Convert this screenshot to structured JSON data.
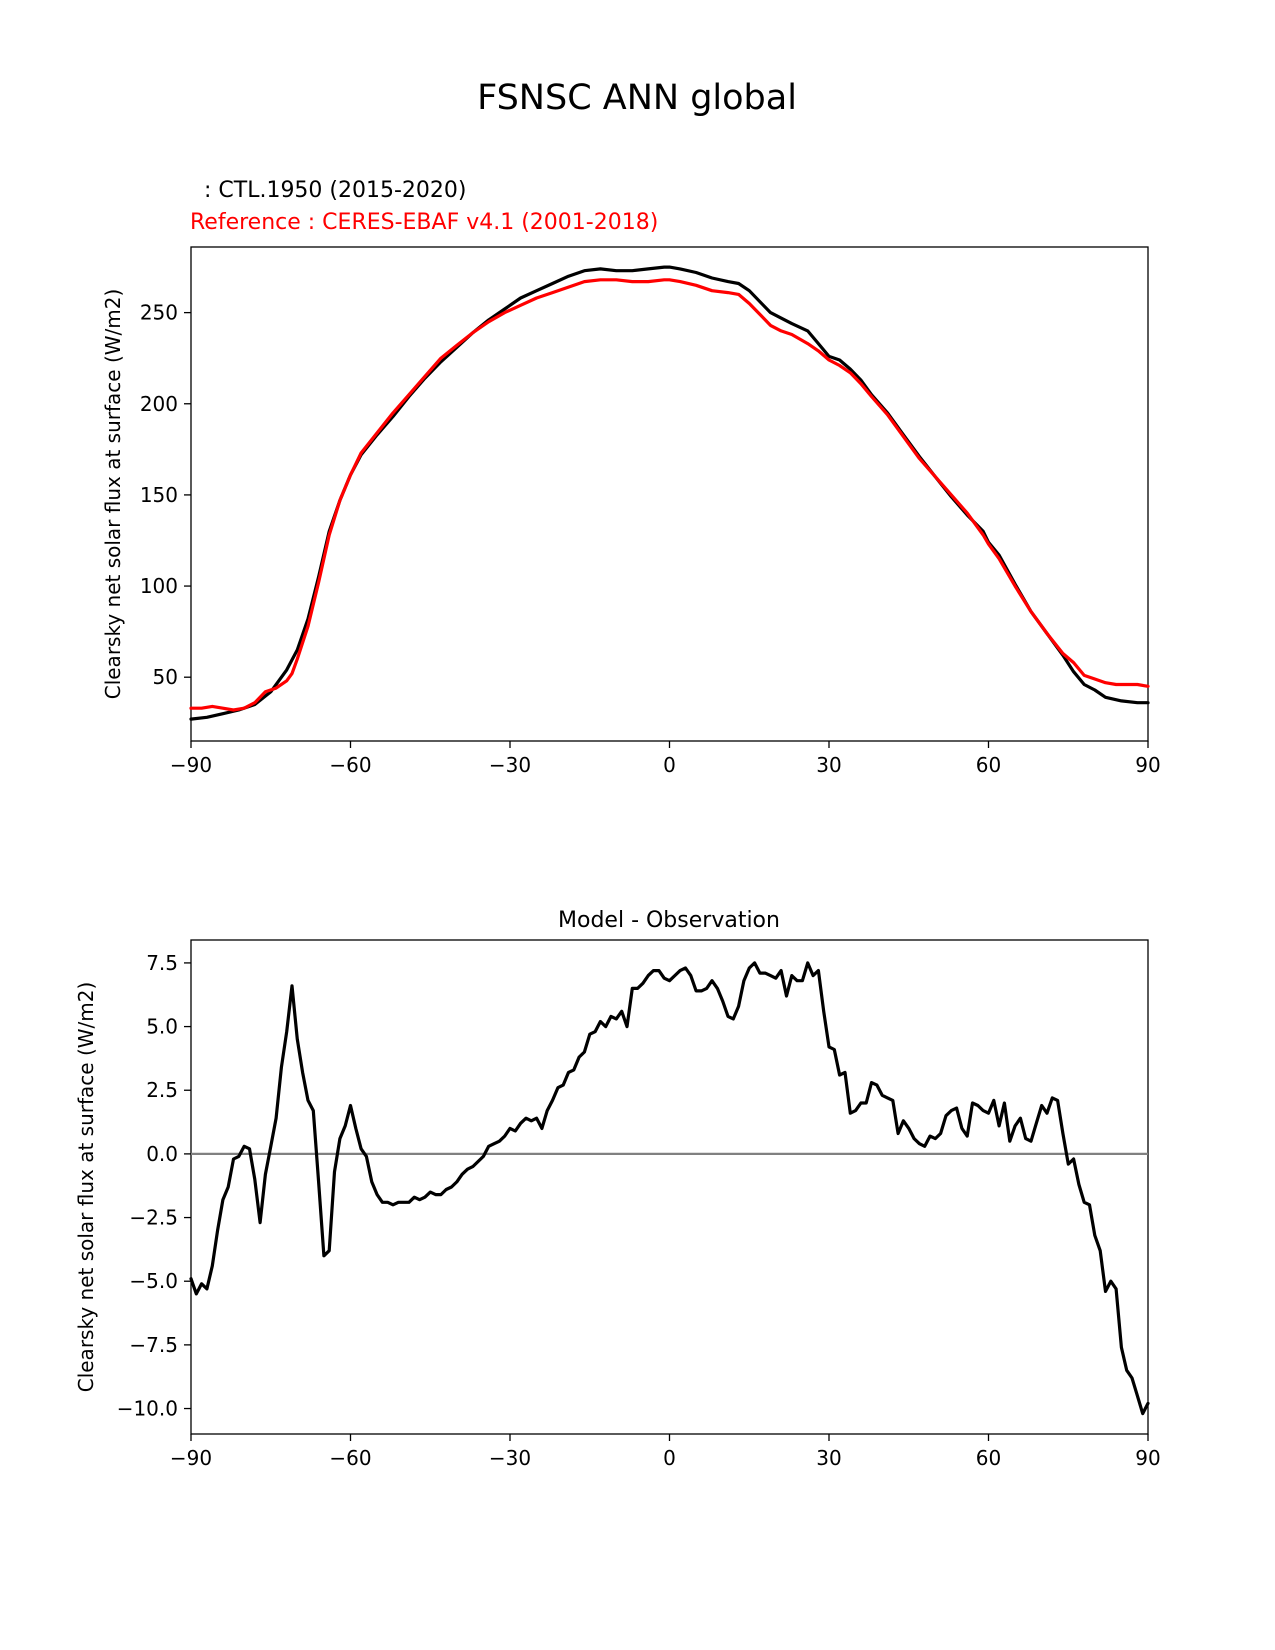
{
  "figure": {
    "title": "FSNSC ANN global",
    "subtitle_test": "  : CTL.1950 (2015-2020)",
    "subtitle_ref": "Reference : CERES-EBAF v4.1 (2001-2018)",
    "colors": {
      "test": "#000000",
      "reference": "#ff0000",
      "diff": "#000000",
      "zero_line": "#808080",
      "ref_title": "#ff0000"
    }
  },
  "chart_data": [
    {
      "type": "line",
      "title": "",
      "xlabel": "",
      "ylabel": "Clearsky net solar flux at surface (W/m2)",
      "xlim": [
        -90,
        90
      ],
      "ylim": [
        15,
        286
      ],
      "xticks": [
        -90,
        -60,
        -30,
        0,
        30,
        60,
        90
      ],
      "xtick_labels": [
        "−90",
        "−60",
        "−30",
        "0",
        "30",
        "60",
        "90"
      ],
      "yticks": [
        50,
        100,
        150,
        200,
        250
      ],
      "ytick_labels": [
        "50",
        "100",
        "150",
        "200",
        "250"
      ],
      "series": [
        {
          "name": "CTL.1950 (2015-2020)",
          "x": [
            -90,
            -87,
            -84,
            -81,
            -78,
            -75,
            -72,
            -70,
            -68,
            -66,
            -64,
            -62,
            -60,
            -58,
            -55,
            -52,
            -49,
            -46,
            -43,
            -40,
            -37,
            -34,
            -31,
            -28,
            -25,
            -22,
            -19,
            -16,
            -13,
            -10,
            -7,
            -4,
            -1,
            0,
            2,
            5,
            8,
            11,
            13,
            15,
            17,
            19,
            21,
            23,
            26,
            28,
            30,
            32,
            34,
            36,
            38,
            41,
            44,
            47,
            50,
            53,
            56,
            59,
            60,
            62,
            65,
            68,
            71,
            74,
            76,
            78,
            80,
            82,
            85,
            88,
            90
          ],
          "values": [
            27,
            28,
            30,
            32,
            35,
            42,
            54,
            65,
            82,
            105,
            130,
            147,
            161,
            172,
            183,
            193,
            204,
            214,
            223,
            231,
            239,
            246,
            252,
            258,
            262,
            266,
            270,
            273,
            274,
            273,
            273,
            274,
            275,
            275,
            274,
            272,
            269,
            267,
            266,
            262,
            256,
            250,
            247,
            244,
            240,
            233,
            226,
            224,
            219,
            213,
            205,
            195,
            183,
            171,
            160,
            149,
            139,
            130,
            124,
            117,
            101,
            86,
            74,
            62,
            53,
            46,
            43,
            39,
            37,
            36,
            36
          ]
        },
        {
          "name": "Reference : CERES-EBAF v4.1 (2001-2018)",
          "x": [
            -90,
            -88,
            -86,
            -84,
            -82,
            -80,
            -78,
            -76,
            -74,
            -72,
            -71,
            -70,
            -68,
            -66,
            -64,
            -62,
            -60,
            -58,
            -55,
            -52,
            -49,
            -46,
            -43,
            -40,
            -37,
            -34,
            -31,
            -28,
            -25,
            -22,
            -19,
            -16,
            -13,
            -10,
            -7,
            -4,
            -1,
            0,
            2,
            5,
            8,
            11,
            13,
            15,
            17,
            19,
            21,
            23,
            26,
            28,
            30,
            32,
            34,
            36,
            38,
            41,
            44,
            47,
            50,
            53,
            56,
            59,
            60,
            62,
            65,
            68,
            71,
            74,
            76,
            78,
            80,
            82,
            84,
            86,
            88,
            90
          ],
          "values": [
            33,
            33,
            34,
            33,
            32,
            33,
            36,
            42,
            44,
            48,
            52,
            60,
            78,
            102,
            128,
            147,
            161,
            173,
            184,
            195,
            205,
            215,
            225,
            232,
            239,
            245,
            250,
            254,
            258,
            261,
            264,
            267,
            268,
            268,
            267,
            267,
            268,
            268,
            267,
            265,
            262,
            261,
            260,
            255,
            249,
            243,
            240,
            238,
            233,
            229,
            224,
            221,
            217,
            211,
            204,
            194,
            182,
            170,
            160,
            150,
            140,
            128,
            123,
            115,
            100,
            86,
            74,
            63,
            58,
            51,
            49,
            47,
            46,
            46,
            46,
            45
          ]
        }
      ]
    },
    {
      "type": "line",
      "title": "Model - Observation",
      "xlabel": "",
      "ylabel": "Clearsky net solar flux at surface (W/m2)",
      "xlim": [
        -90,
        90
      ],
      "ylim": [
        -11,
        8.4
      ],
      "xticks": [
        -90,
        -60,
        -30,
        0,
        30,
        60,
        90
      ],
      "xtick_labels": [
        "−90",
        "−60",
        "−30",
        "0",
        "30",
        "60",
        "90"
      ],
      "yticks": [
        -10,
        -7.5,
        -5,
        -2.5,
        0,
        2.5,
        5,
        7.5
      ],
      "ytick_labels": [
        "−10.0",
        "−7.5",
        "−5.0",
        "−2.5",
        "0.0",
        "2.5",
        "5.0",
        "7.5"
      ],
      "zero_line": 0,
      "series": [
        {
          "name": "Model - Observation",
          "x": [
            -90,
            -89,
            -88,
            -87,
            -86,
            -85,
            -84,
            -83,
            -82,
            -81,
            -80,
            -79,
            -78,
            -77,
            -76,
            -75,
            -74,
            -73,
            -72,
            -71,
            -70,
            -69,
            -68,
            -67,
            -66,
            -65,
            -64,
            -63,
            -62,
            -61,
            -60,
            -59,
            -58,
            -57,
            -56,
            -55,
            -54,
            -53,
            -52,
            -51,
            -50,
            -49,
            -48,
            -47,
            -46,
            -45,
            -44,
            -43,
            -42,
            -41,
            -40,
            -39,
            -38,
            -37,
            -36,
            -35,
            -34,
            -33,
            -32,
            -31,
            -30,
            -29,
            -28,
            -27,
            -26,
            -25,
            -24,
            -23,
            -22,
            -21,
            -20,
            -19,
            -18,
            -17,
            -16,
            -15,
            -14,
            -13,
            -12,
            -11,
            -10,
            -9,
            -8,
            -7,
            -6,
            -5,
            -4,
            -3,
            -2,
            -1,
            0,
            1,
            2,
            3,
            4,
            5,
            6,
            7,
            8,
            9,
            10,
            11,
            12,
            13,
            14,
            15,
            16,
            17,
            18,
            19,
            20,
            21,
            22,
            23,
            24,
            25,
            26,
            27,
            28,
            29,
            30,
            31,
            32,
            33,
            34,
            35,
            36,
            37,
            38,
            39,
            40,
            41,
            42,
            43,
            44,
            45,
            46,
            47,
            48,
            49,
            50,
            51,
            52,
            53,
            54,
            55,
            56,
            57,
            58,
            59,
            60,
            61,
            62,
            63,
            64,
            65,
            66,
            67,
            68,
            69,
            70,
            71,
            72,
            73,
            74,
            75,
            76,
            77,
            78,
            79,
            80,
            81,
            82,
            83,
            84,
            85,
            86,
            87,
            88,
            89,
            90
          ],
          "values": [
            -4.9,
            -5.5,
            -5.1,
            -5.3,
            -4.4,
            -3.0,
            -1.8,
            -1.3,
            -0.2,
            -0.1,
            0.3,
            0.2,
            -1.0,
            -2.7,
            -0.8,
            0.3,
            1.4,
            3.4,
            4.8,
            6.6,
            4.5,
            3.2,
            2.1,
            1.7,
            -1.1,
            -4.0,
            -3.8,
            -0.7,
            0.6,
            1.1,
            1.9,
            1.0,
            0.2,
            -0.1,
            -1.1,
            -1.6,
            -1.9,
            -1.9,
            -2.0,
            -1.9,
            -1.9,
            -1.9,
            -1.7,
            -1.8,
            -1.7,
            -1.5,
            -1.6,
            -1.6,
            -1.4,
            -1.3,
            -1.1,
            -0.8,
            -0.6,
            -0.5,
            -0.3,
            -0.1,
            0.3,
            0.4,
            0.5,
            0.7,
            1.0,
            0.9,
            1.2,
            1.4,
            1.3,
            1.4,
            1.0,
            1.7,
            2.1,
            2.6,
            2.7,
            3.2,
            3.3,
            3.8,
            4.0,
            4.7,
            4.8,
            5.2,
            5.0,
            5.4,
            5.3,
            5.6,
            5.0,
            6.5,
            6.5,
            6.7,
            7.0,
            7.2,
            7.2,
            6.9,
            6.8,
            7.0,
            7.2,
            7.3,
            7.0,
            6.4,
            6.4,
            6.5,
            6.8,
            6.5,
            6.0,
            5.4,
            5.3,
            5.8,
            6.8,
            7.3,
            7.5,
            7.1,
            7.1,
            7.0,
            6.9,
            7.2,
            6.2,
            7.0,
            6.8,
            6.8,
            7.5,
            7.0,
            7.2,
            5.6,
            4.2,
            4.1,
            3.1,
            3.2,
            1.6,
            1.7,
            2.0,
            2.0,
            2.8,
            2.7,
            2.3,
            2.2,
            2.1,
            0.8,
            1.3,
            1.0,
            0.6,
            0.4,
            0.3,
            0.7,
            0.6,
            0.8,
            1.5,
            1.7,
            1.8,
            1.0,
            0.7,
            2.0,
            1.9,
            1.7,
            1.6,
            2.1,
            1.1,
            2.0,
            0.5,
            1.1,
            1.4,
            0.6,
            0.5,
            1.2,
            1.9,
            1.6,
            2.2,
            2.1,
            0.8,
            -0.4,
            -0.2,
            -1.2,
            -1.9,
            -2.0,
            -3.2,
            -3.8,
            -5.4,
            -5.0,
            -5.3,
            -7.6,
            -8.5,
            -8.8,
            -9.5,
            -10.2,
            -9.8
          ]
        }
      ]
    }
  ]
}
